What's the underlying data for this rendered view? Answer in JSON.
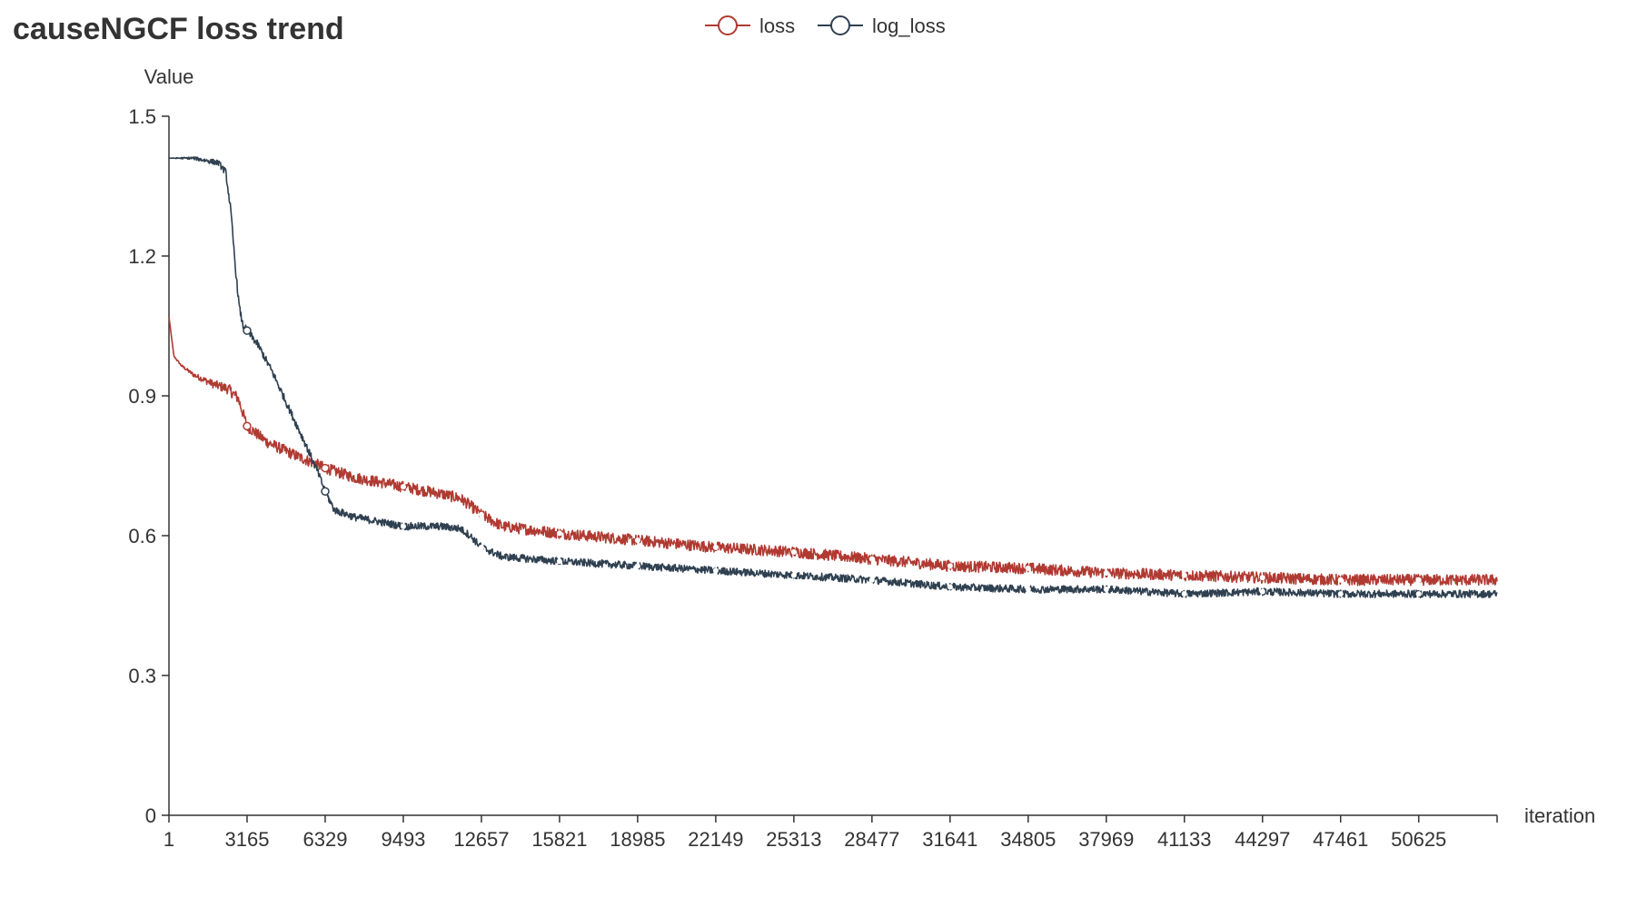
{
  "chart_data": {
    "type": "line",
    "title": "causeNGCF loss trend",
    "xlabel": "iteration",
    "ylabel": "Value",
    "xlim": [
      1,
      53800
    ],
    "ylim": [
      0,
      1.5
    ],
    "x_ticks": [
      "1",
      "3165",
      "6329",
      "9493",
      "12657",
      "15821",
      "18985",
      "22149",
      "25313",
      "28477",
      "31641",
      "34805",
      "37969",
      "41133",
      "44297",
      "47461",
      "50625"
    ],
    "y_ticks": [
      "0",
      "0.3",
      "0.6",
      "0.9",
      "1.2",
      "1.5"
    ],
    "grid": false,
    "legend_position": "top-center",
    "series": [
      {
        "name": "loss",
        "color": "#b03a32",
        "noise": 0.012,
        "x": [
          1,
          200,
          500,
          1000,
          1800,
          2400,
          2800,
          3165,
          4000,
          5000,
          6329,
          7500,
          8500,
          9493,
          11000,
          11800,
          12200,
          12657,
          13500,
          15821,
          18985,
          22149,
          25313,
          28477,
          31641,
          34805,
          37969,
          41133,
          44297,
          47461,
          50625,
          53800
        ],
        "values": [
          1.07,
          0.985,
          0.965,
          0.945,
          0.925,
          0.915,
          0.895,
          0.835,
          0.8,
          0.775,
          0.745,
          0.725,
          0.715,
          0.705,
          0.69,
          0.68,
          0.665,
          0.645,
          0.62,
          0.605,
          0.59,
          0.575,
          0.565,
          0.55,
          0.535,
          0.53,
          0.52,
          0.515,
          0.51,
          0.505,
          0.505,
          0.505
        ]
      },
      {
        "name": "log_loss",
        "color": "#2f4050",
        "noise": 0.008,
        "x": [
          1,
          1000,
          2000,
          2300,
          2500,
          2700,
          2850,
          3000,
          3165,
          3600,
          4200,
          4800,
          5500,
          6000,
          6329,
          6700,
          7500,
          8500,
          9493,
          11000,
          11800,
          12200,
          12657,
          13500,
          15821,
          18985,
          22149,
          25313,
          28477,
          31641,
          34805,
          37969,
          41133,
          44297,
          47461,
          50625,
          53800
        ],
        "values": [
          1.41,
          1.41,
          1.4,
          1.38,
          1.3,
          1.17,
          1.09,
          1.05,
          1.04,
          1.01,
          0.95,
          0.88,
          0.8,
          0.74,
          0.695,
          0.655,
          0.64,
          0.63,
          0.62,
          0.62,
          0.615,
          0.6,
          0.575,
          0.555,
          0.545,
          0.535,
          0.525,
          0.515,
          0.505,
          0.49,
          0.485,
          0.485,
          0.475,
          0.48,
          0.475,
          0.475,
          0.475
        ]
      }
    ]
  }
}
